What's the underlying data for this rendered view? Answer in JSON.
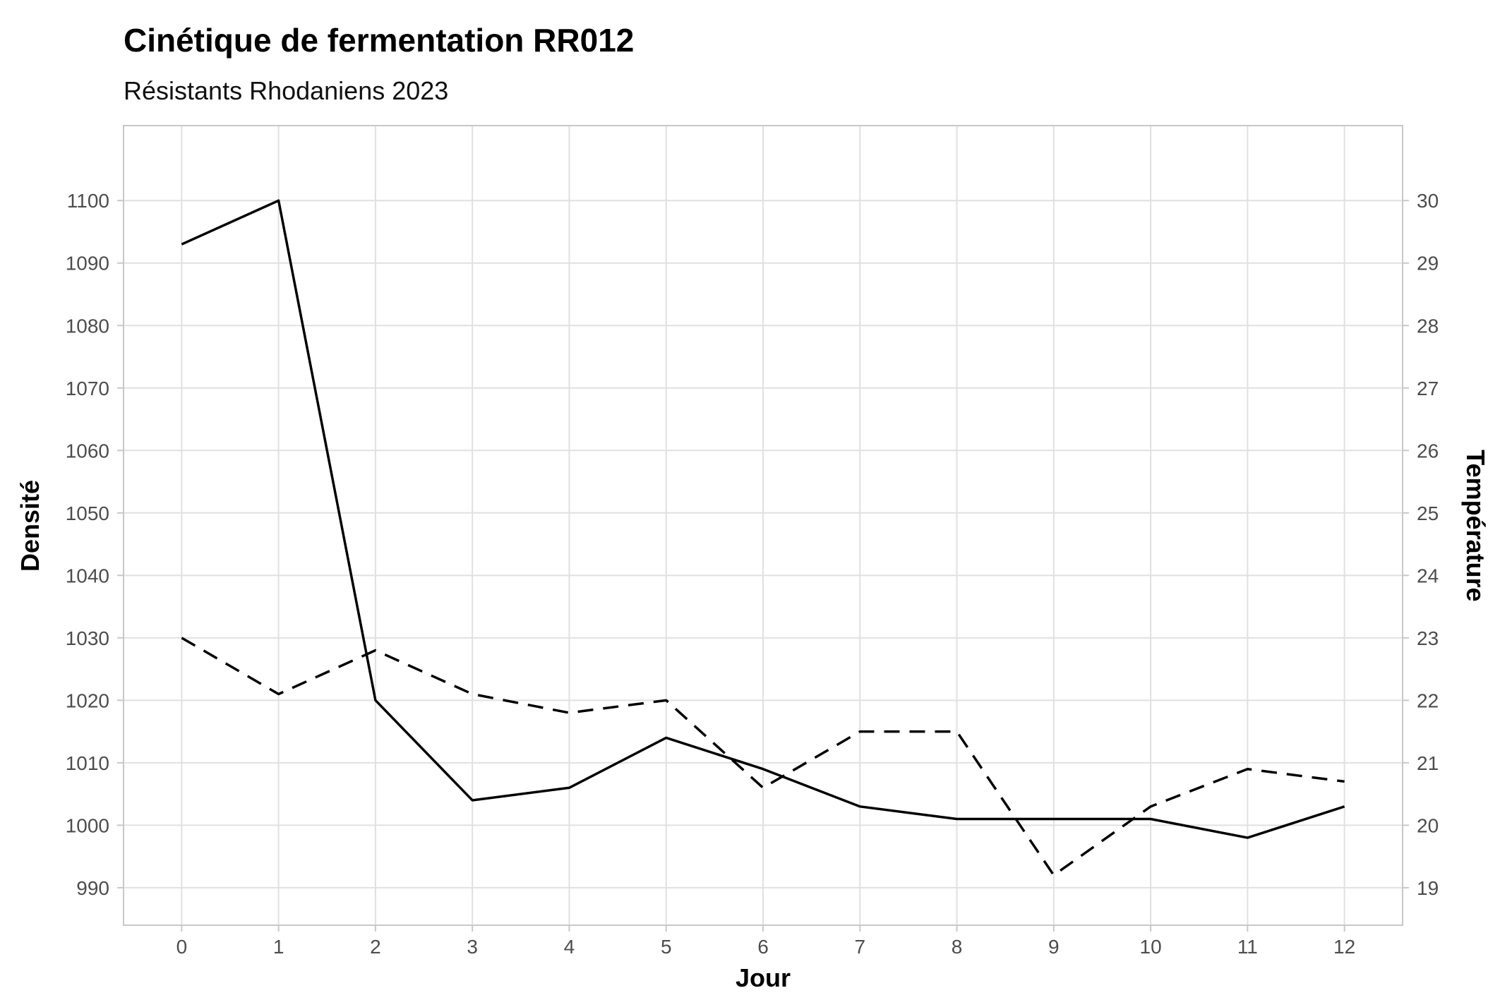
{
  "chart_data": {
    "type": "line",
    "title": "Cinétique de fermentation RR012",
    "subtitle": "Résistants Rhodaniens 2023",
    "xlabel": "Jour",
    "ylabel": "Densité",
    "y2label": "Température",
    "x": [
      0,
      1,
      2,
      3,
      4,
      5,
      6,
      7,
      8,
      9,
      10,
      11,
      12
    ],
    "xlim": [
      -0.6,
      12.6
    ],
    "ylim": [
      984,
      1112
    ],
    "y2lim": [
      18.4,
      31.2
    ],
    "yticks": [
      990,
      1000,
      1010,
      1020,
      1030,
      1040,
      1050,
      1060,
      1070,
      1080,
      1090,
      1100
    ],
    "y2ticks": [
      19,
      20,
      21,
      22,
      23,
      24,
      25,
      26,
      27,
      28,
      29,
      30
    ],
    "grid": true,
    "series": [
      {
        "axis": "left",
        "style": "solid",
        "color": "#000000",
        "values": [
          1093,
          1100,
          1020,
          1004,
          1006,
          1014,
          1009,
          1003,
          1001,
          1001,
          1001,
          998,
          1003
        ]
      },
      {
        "axis": "right",
        "style": "dashed",
        "color": "#000000",
        "values": [
          23.0,
          22.1,
          22.8,
          22.1,
          21.8,
          22.0,
          20.6,
          21.5,
          21.5,
          19.2,
          20.3,
          20.9,
          20.7
        ]
      }
    ]
  }
}
